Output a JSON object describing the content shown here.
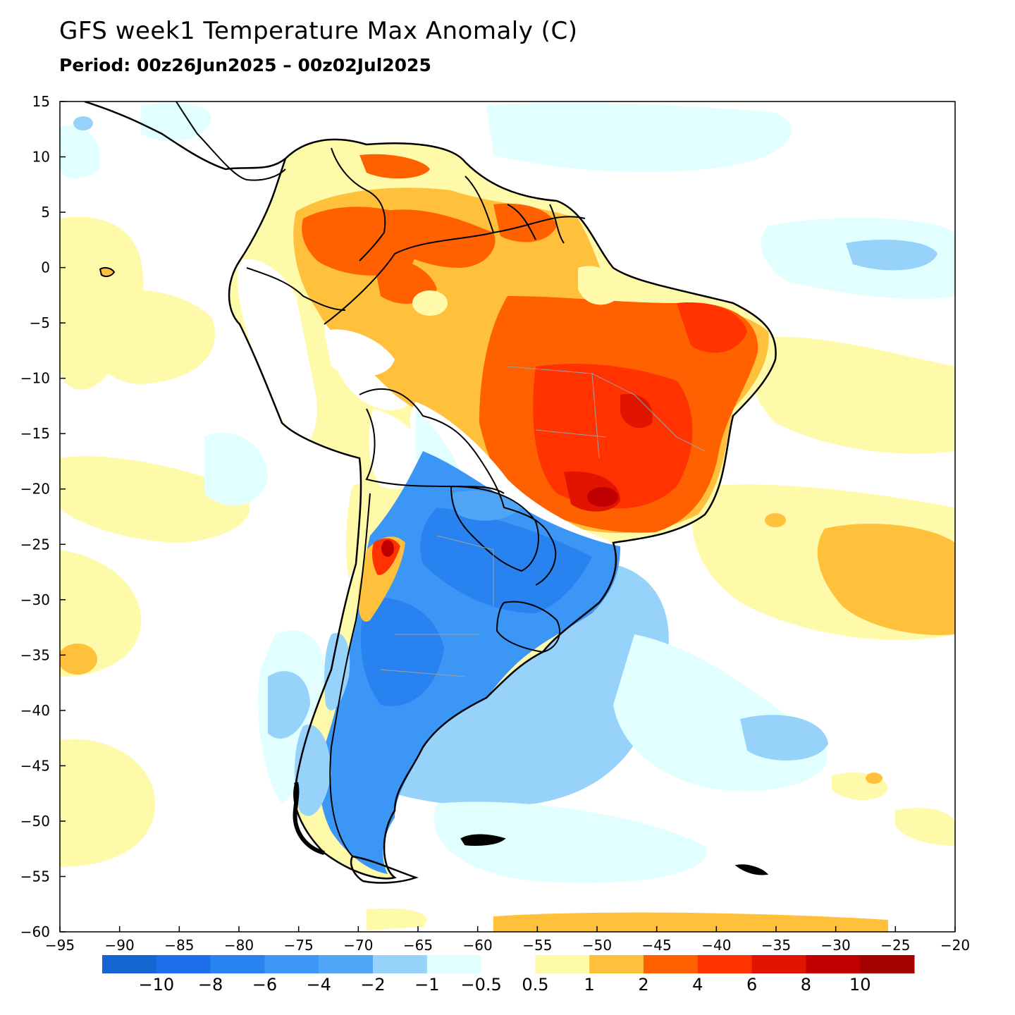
{
  "header": {
    "title": "GFS week1 Temperature Max Anomaly (C)",
    "period": "Period: 00z26Jun2025 – 00z02Jul2025"
  },
  "map": {
    "lon_range": [
      -95,
      -20
    ],
    "lat_range": [
      -60,
      15
    ],
    "x_ticks": [
      -95,
      -90,
      -85,
      -80,
      -75,
      -70,
      -65,
      -60,
      -55,
      -50,
      -45,
      -40,
      -35,
      -30,
      -25,
      -20
    ],
    "y_ticks": [
      15,
      10,
      5,
      0,
      -5,
      -10,
      -15,
      -20,
      -25,
      -30,
      -35,
      -40,
      -45,
      -50,
      -55,
      -60
    ],
    "x_tick_labels": [
      "−95",
      "−90",
      "−85",
      "−80",
      "−75",
      "−70",
      "−65",
      "−60",
      "−55",
      "−50",
      "−45",
      "−40",
      "−35",
      "−30",
      "−25",
      "−20"
    ],
    "y_tick_labels": [
      "15",
      "10",
      "5",
      "0",
      "−5",
      "−10",
      "−15",
      "−20",
      "−25",
      "−30",
      "−35",
      "−40",
      "−45",
      "−50",
      "−55",
      "−60"
    ]
  },
  "colorbar": {
    "colors": [
      "#1464d2",
      "#1e6eeb",
      "#2882f0",
      "#3c96f5",
      "#50a5f5",
      "#96d2fa",
      "#e1ffff",
      "#ffffff",
      "#fffaaa",
      "#ffc03c",
      "#ff6000",
      "#ff3200",
      "#e11400",
      "#c00000",
      "#a50000"
    ],
    "labels": [
      "−10",
      "−8",
      "−6",
      "−4",
      "−2",
      "−1",
      "−0.5",
      "0.5",
      "1",
      "2",
      "4",
      "6",
      "8",
      "10"
    ]
  },
  "legend_colors": {
    "ocean_neutral": "#ffffff",
    "coast_line": "#000000",
    "border_line": "#a0a0a0"
  }
}
